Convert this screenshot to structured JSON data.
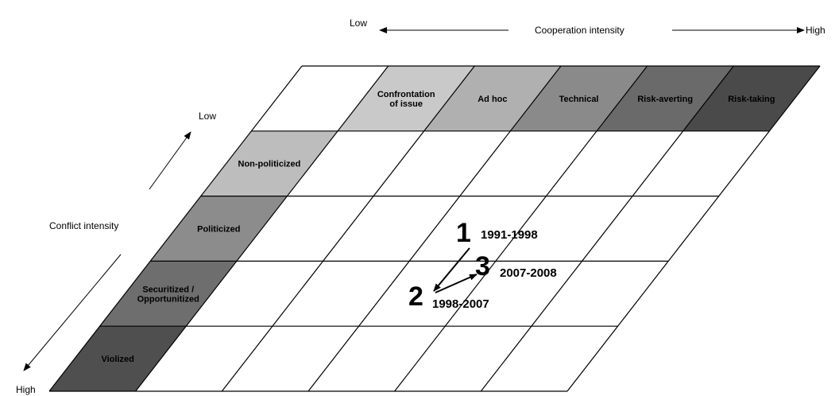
{
  "axes": {
    "cooperation": {
      "label": "Cooperation intensity",
      "low": "Low",
      "high": "High"
    },
    "conflict": {
      "label": "Conflict intensity",
      "low": "Low",
      "high": "High"
    }
  },
  "cooperation_levels": [
    {
      "label_lines": [
        "Confrontation",
        "of issue"
      ],
      "color": "#c9c9c9",
      "text_color": "#000000"
    },
    {
      "label_lines": [
        "Ad hoc"
      ],
      "color": "#b0b0b0",
      "text_color": "#ffffff"
    },
    {
      "label_lines": [
        "Technical"
      ],
      "color": "#8a8a8a",
      "text_color": "#ffffff"
    },
    {
      "label_lines": [
        "Risk-averting"
      ],
      "color": "#6a6a6a",
      "text_color": "#ffffff"
    },
    {
      "label_lines": [
        "Risk-taking"
      ],
      "color": "#4a4a4a",
      "text_color": "#ffffff"
    }
  ],
  "conflict_levels": [
    {
      "label_lines": [
        "Non-politicized"
      ],
      "color": "#bdbdbd",
      "text_color": "#000000"
    },
    {
      "label_lines": [
        "Politicized"
      ],
      "color": "#8c8c8c",
      "text_color": "#ffffff"
    },
    {
      "label_lines": [
        "Securitized /",
        "Opportunitized"
      ],
      "color": "#6e6e6e",
      "text_color": "#ffffff"
    },
    {
      "label_lines": [
        "Violized"
      ],
      "color": "#4f4f4f",
      "text_color": "#ffffff"
    }
  ],
  "periods": [
    {
      "number": "1",
      "years": "1991-1998"
    },
    {
      "number": "2",
      "years": "1998-2007"
    },
    {
      "number": "3",
      "years": "2007-2008"
    }
  ]
}
